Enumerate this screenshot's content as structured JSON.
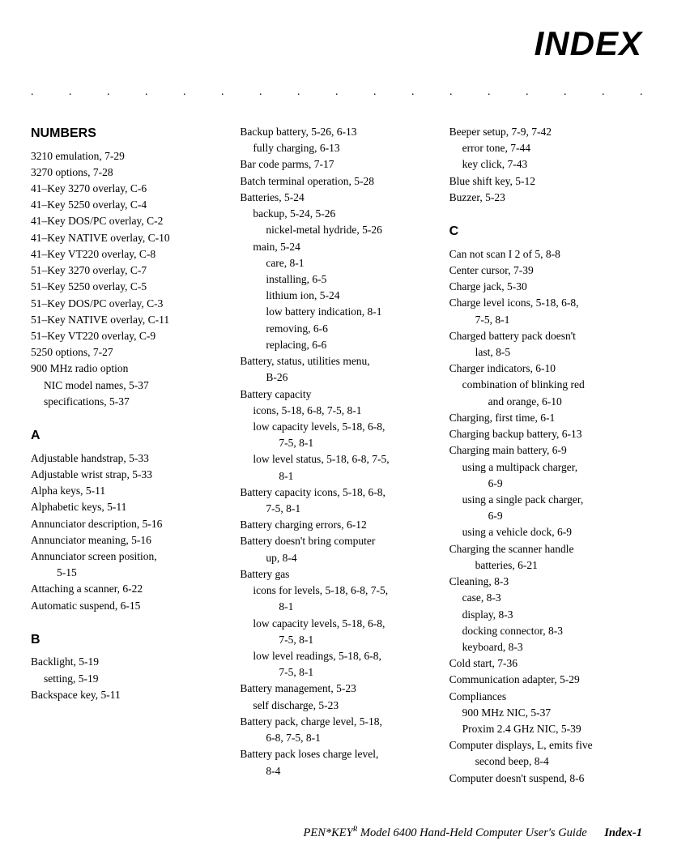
{
  "title": "INDEX",
  "dots": ". . . . . . . . . . . . . . . . . . . . . . . . . . . . .",
  "footer_left": "PEN*KEY",
  "footer_sup": "R",
  "footer_mid": " Model 6400 Hand-Held Computer User's Guide",
  "footer_page": "Index-1",
  "col1": {
    "h1": "NUMBERS",
    "e1": "3210 emulation, 7-29",
    "e2": "3270 options, 7-28",
    "e3": "41–Key 3270 overlay, C-6",
    "e4": "41–Key 5250 overlay, C-4",
    "e5": "41–Key DOS/PC overlay, C-2",
    "e6": "41–Key NATIVE overlay, C-10",
    "e7": "41–Key VT220 overlay, C-8",
    "e8": "51–Key 3270 overlay, C-7",
    "e9": "51–Key 5250 overlay, C-5",
    "e10": "51–Key DOS/PC overlay, C-3",
    "e11": "51–Key NATIVE overlay, C-11",
    "e12": "51–Key VT220 overlay, C-9",
    "e13": "5250 options, 7-27",
    "e14": "900 MHz radio option",
    "e14a": "NIC model names, 5-37",
    "e14b": "specifications, 5-37",
    "h2": "A",
    "a1": "Adjustable handstrap, 5-33",
    "a2": "Adjustable wrist strap, 5-33",
    "a3": "Alpha keys, 5-11",
    "a4": "Alphabetic keys, 5-11",
    "a5": "Annunciator description, 5-16",
    "a6": "Annunciator meaning, 5-16",
    "a7": "Annunciator screen position,",
    "a7b": "5-15",
    "a8": "Attaching a scanner, 6-22",
    "a9": "Automatic suspend, 6-15",
    "h3": "B",
    "b1": "Backlight, 5-19",
    "b1a": "setting, 5-19",
    "b2": "Backspace key, 5-11"
  },
  "col2": {
    "c1": "Backup battery, 5-26, 6-13",
    "c1a": "fully charging, 6-13",
    "c2": "Bar code parms, 7-17",
    "c3": "Batch terminal operation, 5-28",
    "c4": "Batteries, 5-24",
    "c4a": "backup, 5-24, 5-26",
    "c4a1": "nickel-metal hydride, 5-26",
    "c4b": "main, 5-24",
    "c4b1": "care, 8-1",
    "c4b2": "installing, 6-5",
    "c4b3": "lithium ion, 5-24",
    "c4b4": "low battery indication, 8-1",
    "c4b5": "removing, 6-6",
    "c4b6": "replacing, 6-6",
    "c5": "Battery, status, utilities menu,",
    "c5b": "B-26",
    "c6": "Battery capacity",
    "c6a": "icons, 5-18, 6-8, 7-5, 8-1",
    "c6b": "low capacity levels, 5-18, 6-8,",
    "c6bb": "7-5, 8-1",
    "c6c": "low level status, 5-18, 6-8, 7-5,",
    "c6cb": "8-1",
    "c7": "Battery capacity icons, 5-18, 6-8,",
    "c7b": "7-5, 8-1",
    "c8": "Battery charging errors, 6-12",
    "c9": "Battery doesn't bring computer",
    "c9b": "up, 8-4",
    "c10": "Battery gas",
    "c10a": "icons for levels, 5-18, 6-8, 7-5,",
    "c10ab": "8-1",
    "c10b": "low capacity levels, 5-18, 6-8,",
    "c10bb": "7-5, 8-1",
    "c10c": "low level readings, 5-18, 6-8,",
    "c10cb": "7-5, 8-1",
    "c11": "Battery management, 5-23",
    "c11a": "self discharge, 5-23",
    "c12": "Battery pack, charge level, 5-18,",
    "c12b": "6-8, 7-5, 8-1",
    "c13": "Battery pack loses charge level,",
    "c13b": "8-4"
  },
  "col3": {
    "d1": "Beeper setup, 7-9, 7-42",
    "d1a": "error tone, 7-44",
    "d1b": "key click, 7-43",
    "d2": "Blue shift key, 5-12",
    "d3": "Buzzer, 5-23",
    "h1": "C",
    "e1": "Can not scan I 2 of 5, 8-8",
    "e2": "Center cursor, 7-39",
    "e3": "Charge jack, 5-30",
    "e4": "Charge level icons, 5-18, 6-8,",
    "e4b": "7-5, 8-1",
    "e5": "Charged battery pack doesn't",
    "e5b": "last, 8-5",
    "e6": "Charger indicators, 6-10",
    "e6a": "combination of blinking red",
    "e6ab": "and orange, 6-10",
    "e7": "Charging, first time, 6-1",
    "e8": "Charging backup battery, 6-13",
    "e9": "Charging main battery, 6-9",
    "e9a": "using a multipack charger,",
    "e9ab": "6-9",
    "e9b": "using a single pack charger,",
    "e9bb": "6-9",
    "e9c": "using a vehicle dock, 6-9",
    "e10": "Charging the scanner handle",
    "e10b": "batteries, 6-21",
    "e11": "Cleaning, 8-3",
    "e11a": "case, 8-3",
    "e11b": "display, 8-3",
    "e11c": "docking connector, 8-3",
    "e11d": "keyboard, 8-3",
    "e12": "Cold start, 7-36",
    "e13": "Communication adapter, 5-29",
    "e14": "Compliances",
    "e14a": "900 MHz NIC, 5-37",
    "e14b": "Proxim 2.4 GHz NIC, 5-39",
    "e15": "Computer displays, L, emits five",
    "e15b": "second beep, 8-4",
    "e16": "Computer doesn't suspend, 8-6"
  }
}
